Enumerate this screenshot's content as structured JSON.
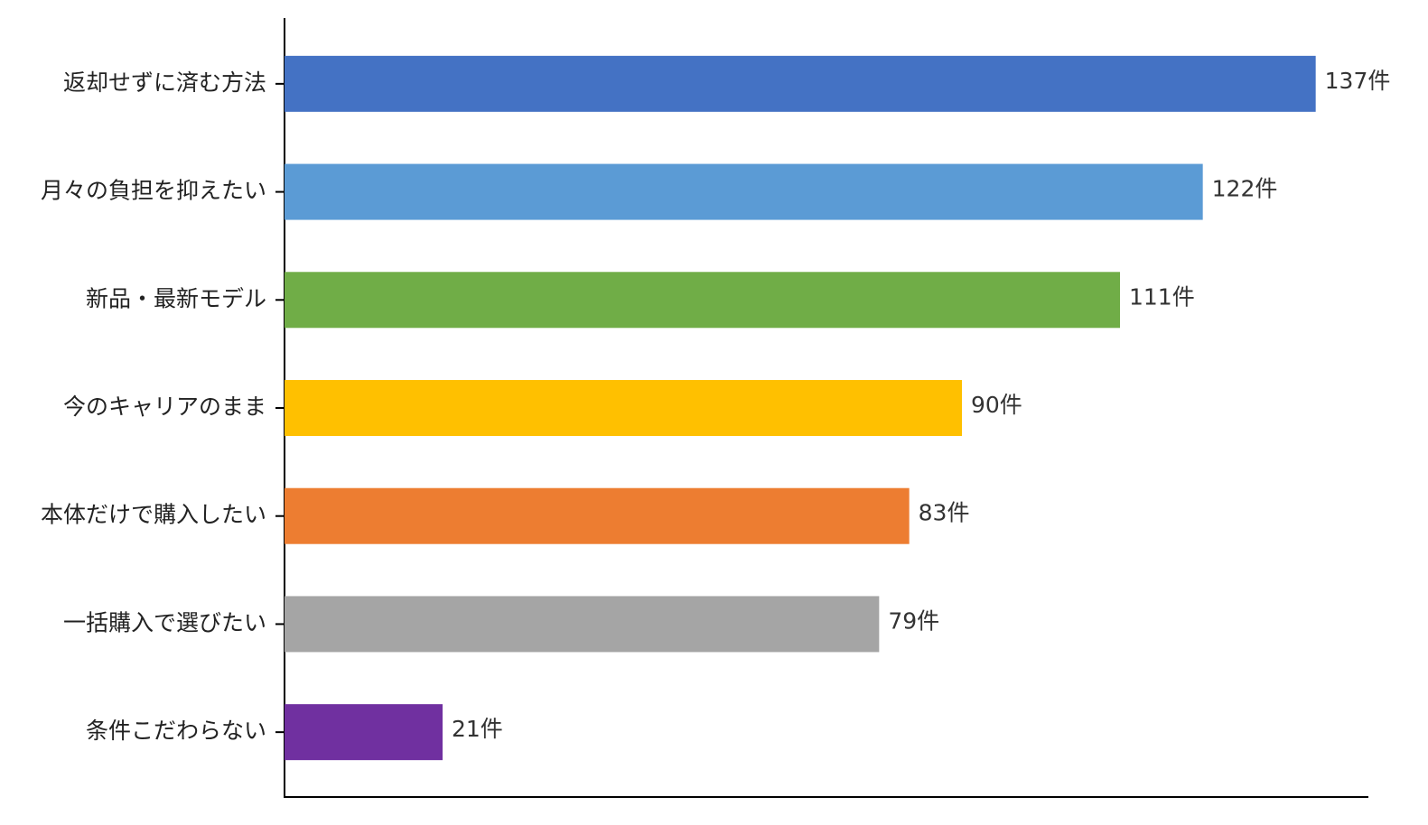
{
  "chart_data": {
    "type": "barh",
    "categories": [
      "返却せずに済む方法",
      "月々の負担を抑えたい",
      "新品・最新モデル",
      "今のキャリアのまま",
      "本体だけで購入したい",
      "一括購入で選びたい",
      "条件こだわらない"
    ],
    "values": [
      137,
      122,
      111,
      90,
      83,
      79,
      21
    ],
    "value_labels": [
      "137件",
      "122件",
      "111件",
      "90件",
      "83件",
      "79件",
      "21件"
    ],
    "colors": [
      "#4472c4",
      "#5b9bd5",
      "#70ad47",
      "#ffc000",
      "#ed7d31",
      "#a5a5a5",
      "#7030a0"
    ],
    "xlim": [
      0,
      144
    ]
  }
}
